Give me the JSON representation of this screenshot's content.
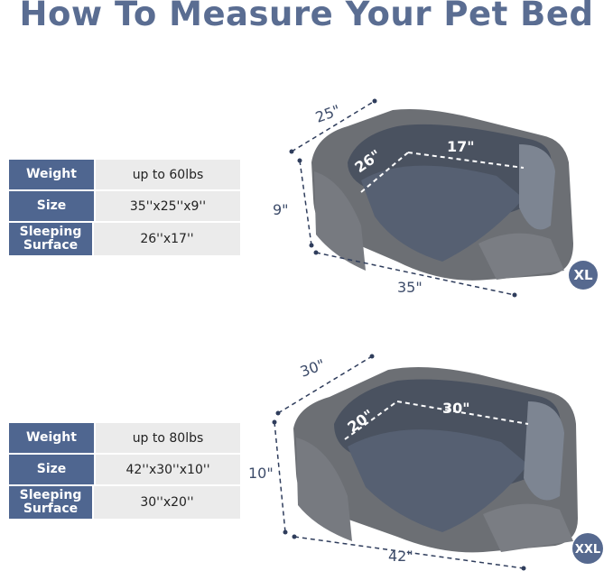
{
  "title": "How To Measure Your Pet Bed",
  "colors": {
    "title": "#5a6d92",
    "header_cell": "#4f6690",
    "value_cell": "#ebebeb",
    "badge": "#56698f"
  },
  "sizes": [
    {
      "badge": "XL",
      "specs": [
        {
          "label": "Weight",
          "value": "up to 60lbs"
        },
        {
          "label": "Size",
          "value": "35''x25''x9''"
        },
        {
          "label": "Sleeping Surface",
          "value": "26''x17''"
        }
      ],
      "dimensions": {
        "width": "25\"",
        "height": "9\"",
        "length": "35\"",
        "inner_depth": "26\"",
        "inner_width": "17\""
      }
    },
    {
      "badge": "XXL",
      "specs": [
        {
          "label": "Weight",
          "value": "up to 80lbs"
        },
        {
          "label": "Size",
          "value": "42''x30''x10''"
        },
        {
          "label": "Sleeping Surface",
          "value": "30''x20''"
        }
      ],
      "dimensions": {
        "width": "30\"",
        "height": "10\"",
        "length": "42\"",
        "inner_depth": "20\"",
        "inner_width": "30\""
      }
    }
  ]
}
